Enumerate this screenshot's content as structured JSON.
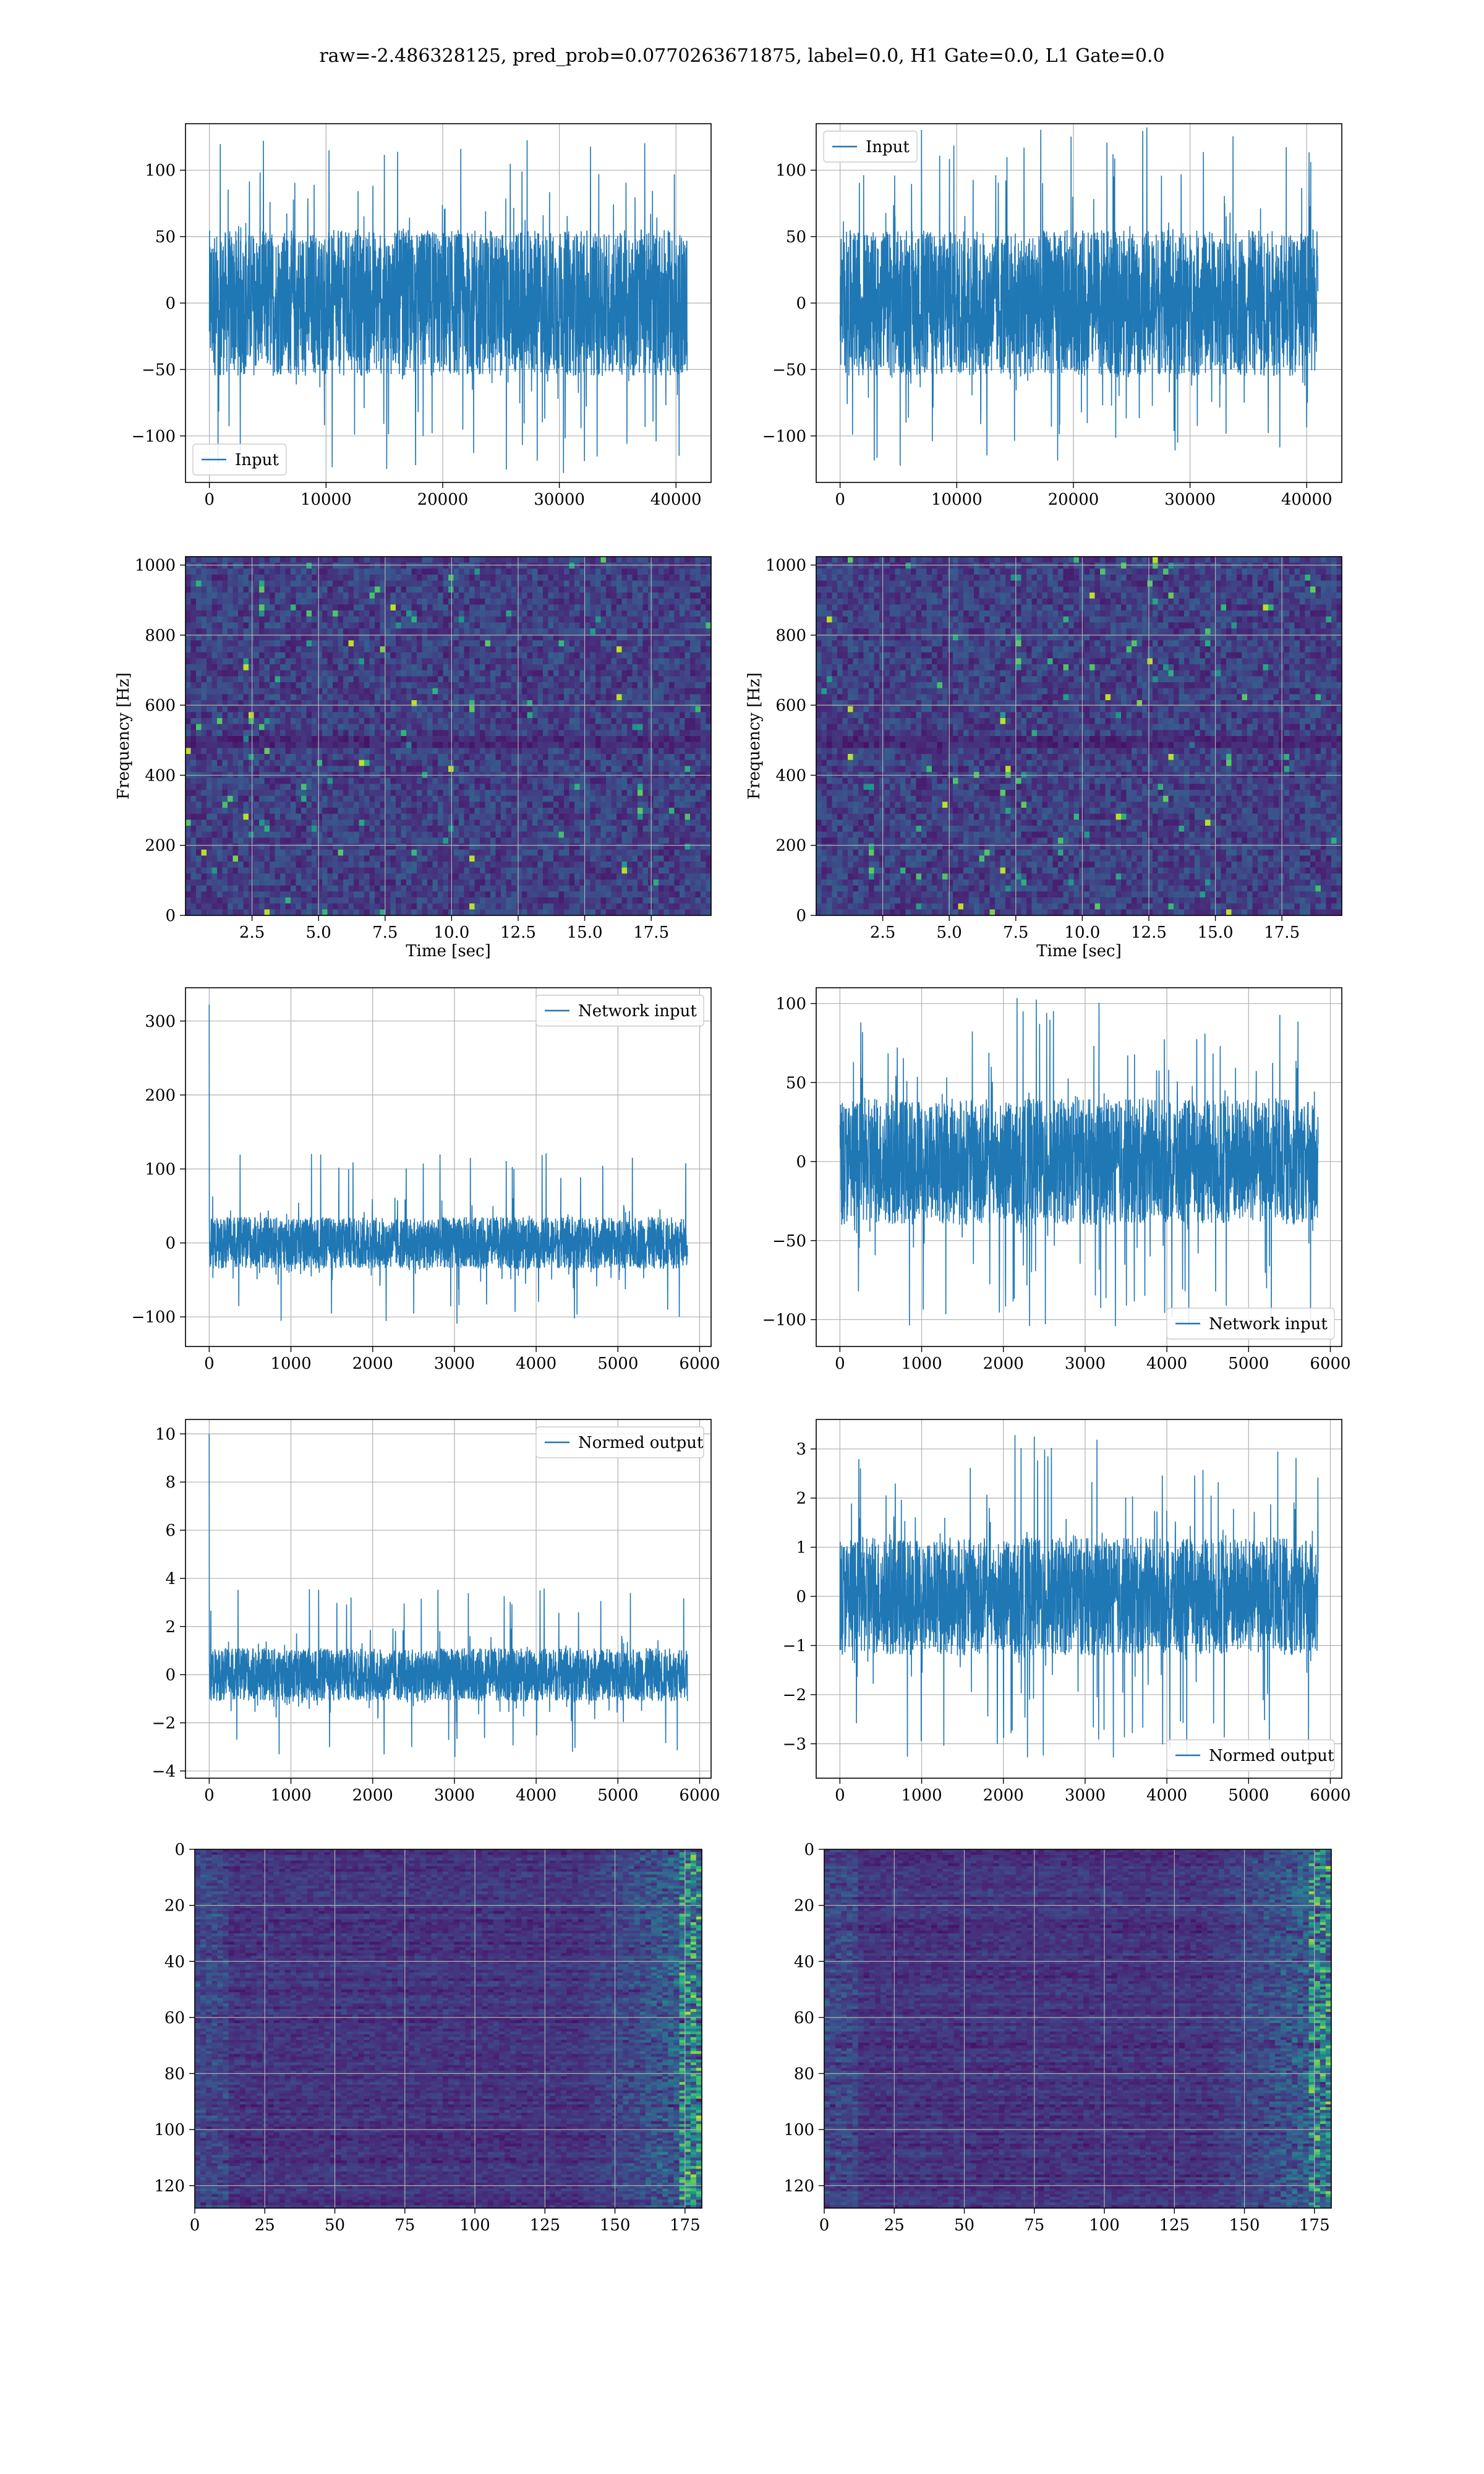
{
  "suptitle": "raw=-2.486328125, pred_prob=0.0770263671875, label=0.0, H1 Gate=0.0, L1 Gate=0.0",
  "colors": {
    "series": "#1f77b4",
    "grid": "#b0b0b0",
    "axes": "#000000",
    "viridis_dark": "#440154"
  },
  "chart_data": [
    {
      "type": "line",
      "subplot": "row1-left",
      "x_range": [
        0,
        40960
      ],
      "xticks": [
        0,
        10000,
        20000,
        30000,
        40000
      ],
      "yticks": [
        -100,
        -50,
        0,
        50,
        100
      ],
      "xlim": [
        -2048,
        43008
      ],
      "ylim": [
        -135,
        135
      ],
      "series": [
        {
          "name": "Input",
          "envelope": {
            "lo": -55,
            "hi": 55,
            "peak_hi": 125,
            "peak_lo": -128
          }
        }
      ],
      "legend_loc": "lower left",
      "grid": true
    },
    {
      "type": "line",
      "subplot": "row1-right",
      "x_range": [
        0,
        40960
      ],
      "xticks": [
        0,
        10000,
        20000,
        30000,
        40000
      ],
      "yticks": [
        -100,
        -50,
        0,
        50,
        100
      ],
      "xlim": [
        -2048,
        43008
      ],
      "ylim": [
        -135,
        135
      ],
      "series": [
        {
          "name": "Input",
          "envelope": {
            "lo": -55,
            "hi": 55,
            "peak_hi": 133,
            "peak_lo": -125
          }
        }
      ],
      "legend_loc": "upper left",
      "grid": true
    },
    {
      "type": "heatmap",
      "subplot": "row2-left",
      "colormap": "viridis",
      "xlabel": "Time [sec]",
      "ylabel": "Frequency [Hz]",
      "xlim": [
        0,
        19.75
      ],
      "ylim": [
        0,
        1024
      ],
      "xticks": [
        "2.5",
        "5.0",
        "7.5",
        "10.0",
        "12.5",
        "15.0",
        "17.5"
      ],
      "yticks": [
        "0",
        "200",
        "400",
        "600",
        "800",
        "1000"
      ],
      "grid": true
    },
    {
      "type": "heatmap",
      "subplot": "row2-right",
      "colormap": "viridis",
      "xlabel": "Time [sec]",
      "ylabel": "Frequency [Hz]",
      "xlim": [
        0,
        19.75
      ],
      "ylim": [
        0,
        1024
      ],
      "xticks": [
        "2.5",
        "5.0",
        "7.5",
        "10.0",
        "12.5",
        "15.0",
        "17.5"
      ],
      "yticks": [
        "0",
        "200",
        "400",
        "600",
        "800",
        "1000"
      ],
      "grid": true
    },
    {
      "type": "line",
      "subplot": "row3-left",
      "x_range": [
        0,
        5850
      ],
      "xticks": [
        0,
        1000,
        2000,
        3000,
        4000,
        5000,
        6000
      ],
      "yticks": [
        -100,
        0,
        100,
        200,
        300
      ],
      "xlim": [
        -290,
        6140
      ],
      "ylim": [
        -140,
        345
      ],
      "series": [
        {
          "name": "Network input",
          "envelope": {
            "lo": -35,
            "hi": 35,
            "peak_hi": 122,
            "peak_lo": -115
          },
          "spike": {
            "x": 0,
            "y": 322
          }
        }
      ],
      "legend_loc": "upper right",
      "grid": true
    },
    {
      "type": "line",
      "subplot": "row3-right",
      "x_range": [
        0,
        5850
      ],
      "xticks": [
        0,
        1000,
        2000,
        3000,
        4000,
        5000,
        6000
      ],
      "yticks": [
        -100,
        -50,
        0,
        50,
        100
      ],
      "xlim": [
        -290,
        6140
      ],
      "ylim": [
        -117,
        110
      ],
      "series": [
        {
          "name": "Network input",
          "envelope": {
            "lo": -40,
            "hi": 40,
            "peak_hi": 104,
            "peak_lo": -108
          }
        }
      ],
      "legend_loc": "lower right",
      "grid": true
    },
    {
      "type": "line",
      "subplot": "row4-left",
      "x_range": [
        0,
        5850
      ],
      "xticks": [
        0,
        1000,
        2000,
        3000,
        4000,
        5000,
        6000
      ],
      "yticks": [
        -4,
        -2,
        0,
        2,
        4,
        6,
        8,
        10
      ],
      "xlim": [
        -290,
        6140
      ],
      "ylim": [
        -4.3,
        10.6
      ],
      "series": [
        {
          "name": "Normed output",
          "envelope": {
            "lo": -1.1,
            "hi": 1.1,
            "peak_hi": 3.6,
            "peak_lo": -3.6
          },
          "spike": {
            "x": 0,
            "y": 10.0
          }
        }
      ],
      "legend_loc": "upper right",
      "grid": true
    },
    {
      "type": "line",
      "subplot": "row4-right",
      "x_range": [
        0,
        5850
      ],
      "xticks": [
        0,
        1000,
        2000,
        3000,
        4000,
        5000,
        6000
      ],
      "yticks": [
        -3,
        -2,
        -1,
        0,
        1,
        2,
        3
      ],
      "xlim": [
        -290,
        6140
      ],
      "ylim": [
        -3.7,
        3.6
      ],
      "series": [
        {
          "name": "Normed output",
          "envelope": {
            "lo": -1.2,
            "hi": 1.2,
            "peak_hi": 3.3,
            "peak_lo": -3.4
          }
        }
      ],
      "legend_loc": "lower right",
      "grid": true
    },
    {
      "type": "heatmap",
      "subplot": "row5-left",
      "colormap": "viridis",
      "xlim": [
        0,
        181
      ],
      "ylim": [
        128,
        0
      ],
      "xticks": [
        "0",
        "25",
        "50",
        "75",
        "100",
        "125",
        "150",
        "175"
      ],
      "yticks": [
        "0",
        "20",
        "40",
        "60",
        "80",
        "100",
        "120"
      ],
      "grid": true
    },
    {
      "type": "heatmap",
      "subplot": "row5-right",
      "colormap": "viridis",
      "xlim": [
        0,
        181
      ],
      "ylim": [
        128,
        0
      ],
      "xticks": [
        "0",
        "25",
        "50",
        "75",
        "100",
        "125",
        "150",
        "175"
      ],
      "yticks": [
        "0",
        "20",
        "40",
        "60",
        "80",
        "100",
        "120"
      ],
      "grid": true
    }
  ]
}
